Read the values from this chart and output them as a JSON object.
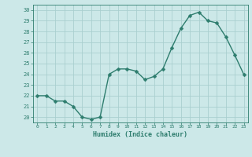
{
  "x": [
    0,
    1,
    2,
    3,
    4,
    5,
    6,
    7,
    8,
    9,
    10,
    11,
    12,
    13,
    14,
    15,
    16,
    17,
    18,
    19,
    20,
    21,
    22,
    23
  ],
  "y": [
    22,
    22,
    21.5,
    21.5,
    21,
    20,
    19.8,
    20,
    24,
    24.5,
    24.5,
    24.3,
    23.5,
    23.8,
    24.5,
    26.5,
    28.3,
    29.5,
    29.8,
    29,
    28.8,
    27.5,
    25.8,
    24
  ],
  "line_color": "#2e7d6e",
  "marker_color": "#2e7d6e",
  "bg_color": "#cce8e8",
  "grid_color": "#aacfcf",
  "xlabel": "Humidex (Indice chaleur)",
  "xlim": [
    -0.5,
    23.5
  ],
  "ylim": [
    19.5,
    30.5
  ],
  "yticks": [
    20,
    21,
    22,
    23,
    24,
    25,
    26,
    27,
    28,
    29,
    30
  ],
  "xticks": [
    0,
    1,
    2,
    3,
    4,
    5,
    6,
    7,
    8,
    9,
    10,
    11,
    12,
    13,
    14,
    15,
    16,
    17,
    18,
    19,
    20,
    21,
    22,
    23
  ],
  "marker_size": 2.5,
  "line_width": 1.0
}
